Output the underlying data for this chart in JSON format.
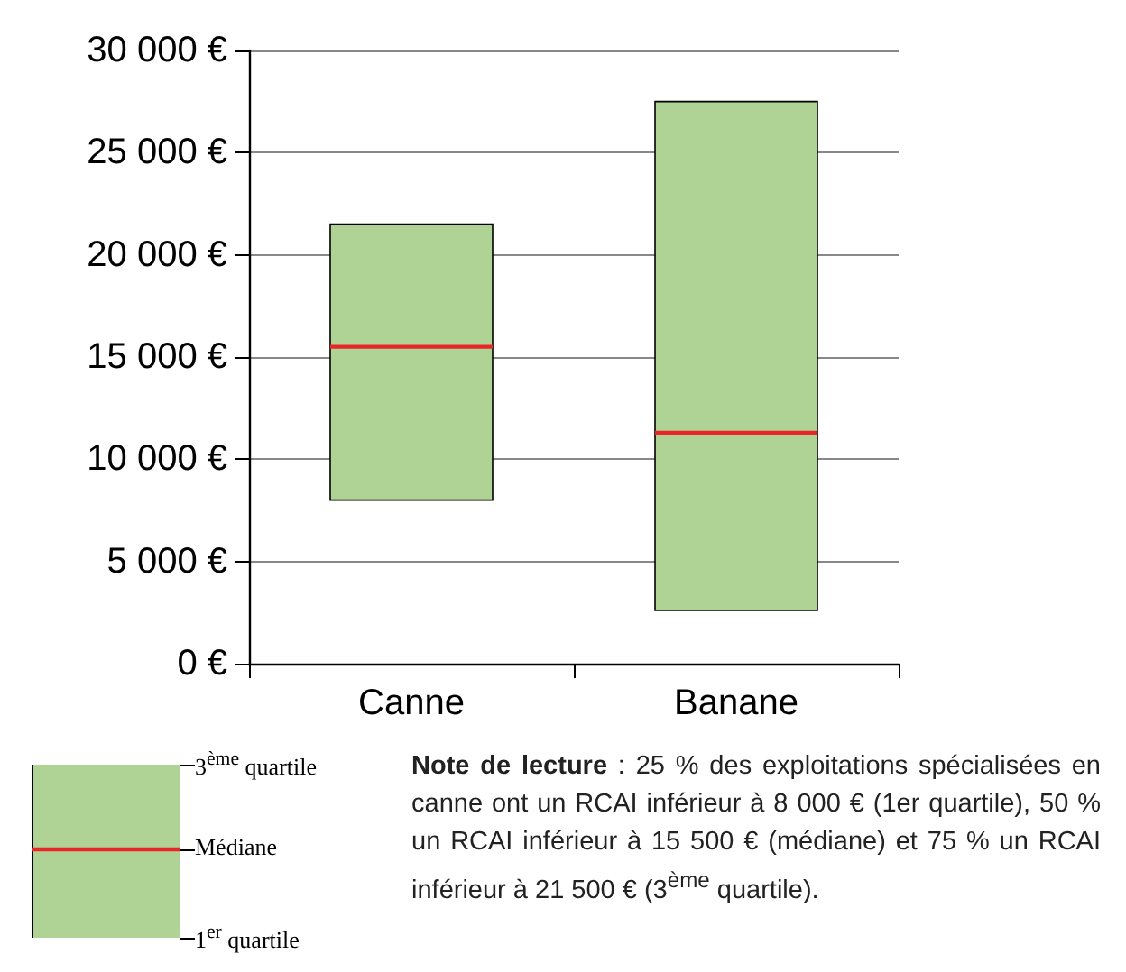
{
  "chart_data": {
    "type": "box",
    "categories": [
      "Canne",
      "Banane"
    ],
    "boxes": [
      {
        "low": 8000,
        "q1": 8000,
        "median": 15500,
        "q3": 21500,
        "high": 21500
      },
      {
        "low": 2600,
        "q1": 2600,
        "median": 11300,
        "q3": 27500,
        "high": 27500
      }
    ],
    "color": "#aed395",
    "ylim": [
      0,
      30000
    ],
    "yticks": [
      {
        "value": 0,
        "label": "0 €"
      },
      {
        "value": 5000,
        "label": "5 000 €"
      },
      {
        "value": 10000,
        "label": "10 000 €"
      },
      {
        "value": 15000,
        "label": "15 000 €"
      },
      {
        "value": 20000,
        "label": "20 000 €"
      },
      {
        "value": 25000,
        "label": "25 000 €"
      },
      {
        "value": 30000,
        "label": "30 000 €"
      }
    ],
    "grid": "y",
    "annotations": [
      "3$^{ème}$ quartile",
      "Médiane",
      "1$^{er}$ quartile",
      "Note de lecture",
      " : 25 % des exploitations spécialisées en canne ont un RCAI inférieur à 8 000  € (1er quartile), 50 % un RCAI inférieur à 15 500 € (médiane) et 75 % un RCAI inférieur à 21 500 € (3$^{ème}$ quartile)."
    ]
  }
}
